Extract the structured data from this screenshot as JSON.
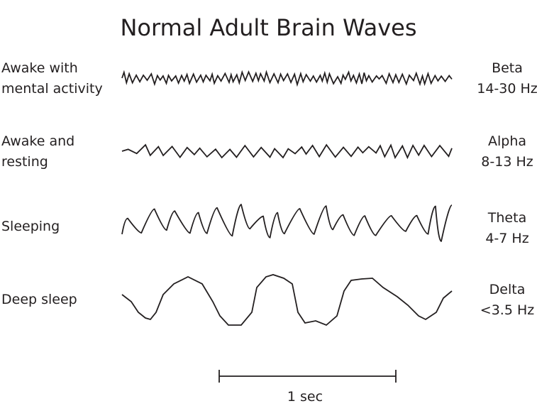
{
  "title": "Normal Adult Brain Waves",
  "rows": [
    {
      "state_lines": [
        "Awake with",
        "mental activity"
      ],
      "band": "Beta",
      "range": "14-30 Hz"
    },
    {
      "state_lines": [
        "Awake and",
        "resting"
      ],
      "band": "Alpha",
      "range": "8-13 Hz"
    },
    {
      "state_lines": [
        "Sleeping"
      ],
      "band": "Theta",
      "range": "4-7 Hz"
    },
    {
      "state_lines": [
        "Deep sleep"
      ],
      "band": "Delta",
      "range": "<3.5 Hz"
    }
  ],
  "scale_bar": {
    "label": "1 sec"
  },
  "line_color": "#231f20"
}
